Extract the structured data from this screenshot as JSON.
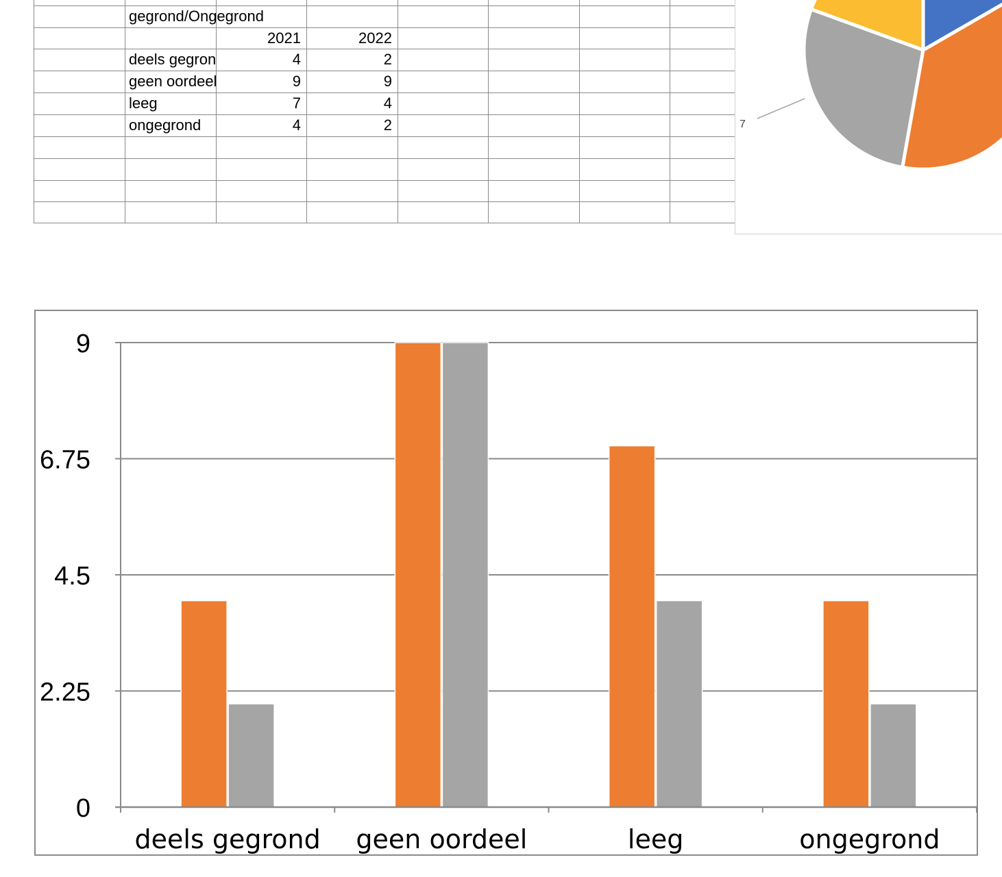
{
  "sheet": {
    "title": "gegrond/Ongegrond",
    "header": [
      "",
      "2021",
      "2022"
    ],
    "rows": [
      {
        "label": "deels gegrond",
        "v2021": "4",
        "v2022": "2"
      },
      {
        "label": "geen oordeel",
        "v2021": "9",
        "v2022": "9"
      },
      {
        "label": "leeg",
        "v2021": "7",
        "v2022": "4"
      },
      {
        "label": "ongegrond",
        "v2021": "4",
        "v2022": "2"
      }
    ]
  },
  "pie": {
    "visible_label": "7",
    "colors": {
      "yellow": "#FBBC32",
      "blue": "#4472C4",
      "gray": "#A5A5A5",
      "orange": "#ED7D31"
    }
  },
  "chart_data": [
    {
      "type": "bar",
      "categories": [
        "deels gegrond",
        "geen oordeel",
        "leeg",
        "ongegrond"
      ],
      "series": [
        {
          "values": [
            4,
            9,
            7,
            4
          ],
          "color": "#ED7D31"
        },
        {
          "values": [
            2,
            9,
            4,
            2
          ],
          "color": "#A5A5A5"
        }
      ],
      "ylim": [
        0,
        9
      ],
      "yticks": [
        "0",
        "2.25",
        "4.5",
        "6.75",
        "9"
      ],
      "grid": true,
      "xlabel": "",
      "ylabel": ""
    }
  ]
}
